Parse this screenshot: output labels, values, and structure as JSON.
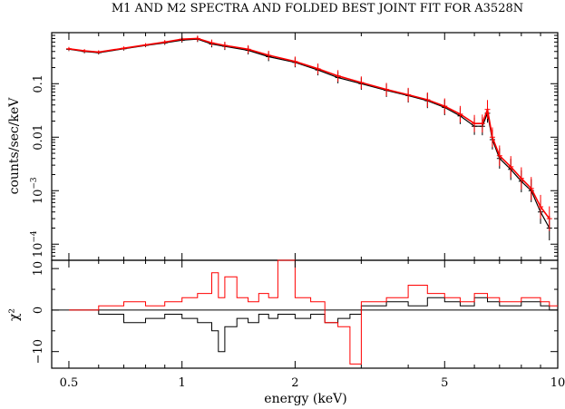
{
  "chart_data": {
    "type": "line",
    "title": "M1 AND M2 SPECTRA AND FOLDED BEST JOINT FIT FOR A3528N",
    "xlabel": "energy (keV)",
    "x_scale": "log",
    "xlim": [
      0.45,
      10
    ],
    "x_ticks": [
      0.5,
      1,
      2,
      5,
      10
    ],
    "x_tick_labels": [
      "0.5",
      "1",
      "2",
      "5",
      "10"
    ],
    "panels": [
      {
        "name": "spectrum",
        "ylabel": "counts/sec/keV",
        "y_scale": "log",
        "ylim": [
          5e-05,
          0.9
        ],
        "y_ticks": [
          0.0001,
          0.001,
          0.01,
          0.1
        ],
        "y_tick_labels": [
          {
            "base": "10",
            "exp": "−4"
          },
          {
            "base": "10",
            "exp": "−3"
          },
          {
            "base": "0.01",
            "exp": ""
          },
          {
            "base": "0.1",
            "exp": ""
          }
        ],
        "series": [
          {
            "color": "#000000",
            "style": "crosses",
            "x": [
              0.5,
              0.55,
              0.6,
              0.7,
              0.8,
              0.9,
              1.0,
              1.1,
              1.2,
              1.3,
              1.5,
              1.7,
              2.0,
              2.3,
              2.6,
              3.0,
              3.5,
              4.0,
              4.5,
              5.0,
              5.5,
              6.0,
              6.3,
              6.5,
              6.7,
              7.0,
              7.5,
              8.0,
              8.5,
              9.0,
              9.5
            ],
            "y": [
              0.44,
              0.4,
              0.38,
              0.45,
              0.52,
              0.58,
              0.65,
              0.68,
              0.55,
              0.5,
              0.42,
              0.32,
              0.25,
              0.18,
              0.13,
              0.1,
              0.075,
              0.06,
              0.048,
              0.036,
              0.025,
              0.016,
              0.016,
              0.028,
              0.009,
              0.004,
              0.0025,
              0.0015,
              0.001,
              0.0004,
              0.0002
            ]
          },
          {
            "color": "#ff0000",
            "style": "crosses",
            "x": [
              0.5,
              0.55,
              0.6,
              0.7,
              0.8,
              0.9,
              1.0,
              1.1,
              1.2,
              1.3,
              1.5,
              1.7,
              2.0,
              2.3,
              2.6,
              3.0,
              3.5,
              4.0,
              4.5,
              5.0,
              5.5,
              6.0,
              6.3,
              6.5,
              6.7,
              7.0,
              7.5,
              8.0,
              8.5,
              9.0,
              9.5
            ],
            "y": [
              0.45,
              0.41,
              0.39,
              0.46,
              0.53,
              0.6,
              0.68,
              0.7,
              0.58,
              0.52,
              0.44,
              0.34,
              0.26,
              0.19,
              0.14,
              0.105,
              0.078,
              0.062,
              0.05,
              0.038,
              0.027,
              0.018,
              0.018,
              0.033,
              0.01,
              0.0045,
              0.0028,
              0.0017,
              0.0011,
              0.0005,
              0.0003
            ]
          }
        ]
      },
      {
        "name": "residuals",
        "ylabel": "χ²",
        "y_scale": "linear",
        "ylim": [
          -14,
          12
        ],
        "y_ticks": [
          -10,
          0,
          10
        ],
        "y_tick_labels": [
          "−10",
          "0",
          "10"
        ],
        "zero_line": true,
        "series": [
          {
            "color": "#000000",
            "style": "histogram",
            "x": [
              0.5,
              0.6,
              0.7,
              0.8,
              0.9,
              1.0,
              1.1,
              1.2,
              1.25,
              1.3,
              1.4,
              1.5,
              1.6,
              1.7,
              1.8,
              2.0,
              2.2,
              2.4,
              2.6,
              2.8,
              3.0,
              3.5,
              4.0,
              4.5,
              5.0,
              5.5,
              6.0,
              6.5,
              7.0,
              8.0,
              9.0,
              9.5
            ],
            "y": [
              0,
              -1,
              -3,
              -2,
              -1,
              -2,
              -3,
              -5,
              -10,
              -4,
              -2,
              -3,
              -1,
              -2,
              -1,
              -2,
              -1,
              -3,
              -2,
              -1,
              1,
              2,
              1,
              3,
              2,
              1,
              3,
              2,
              1,
              2,
              1,
              0
            ]
          },
          {
            "color": "#ff0000",
            "style": "histogram",
            "x": [
              0.5,
              0.6,
              0.7,
              0.8,
              0.9,
              1.0,
              1.1,
              1.2,
              1.25,
              1.3,
              1.4,
              1.5,
              1.6,
              1.7,
              1.8,
              2.0,
              2.2,
              2.4,
              2.6,
              2.8,
              3.0,
              3.5,
              4.0,
              4.5,
              5.0,
              5.5,
              6.0,
              6.5,
              7.0,
              8.0,
              9.0,
              9.5
            ],
            "y": [
              0,
              1,
              2,
              1,
              2,
              3,
              4,
              9,
              3,
              8,
              3,
              2,
              4,
              3,
              12,
              3,
              2,
              -3,
              -4,
              -13,
              2,
              3,
              6,
              4,
              3,
              2,
              4,
              3,
              2,
              3,
              2,
              1
            ]
          }
        ]
      }
    ],
    "grid": false,
    "legend": "none"
  }
}
